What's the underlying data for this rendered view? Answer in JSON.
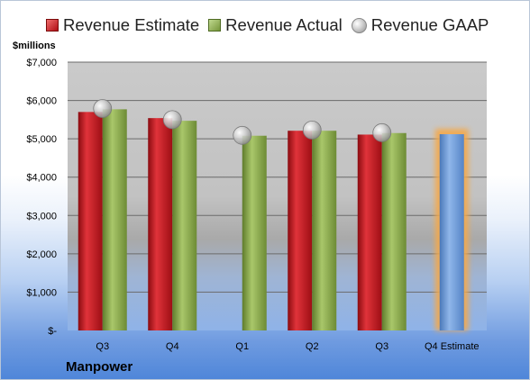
{
  "legend": {
    "estimate_label": "Revenue Estimate",
    "actual_label": "Revenue Actual",
    "gaap_label": "Revenue GAAP"
  },
  "unit_label": "$millions",
  "company": "Manpower",
  "colors": {
    "estimate": "#c0141b",
    "actual": "#8fae4e",
    "gaap": "#b5b5b5",
    "forecast": "#6a9bd8",
    "forecast_glow": "#f5a94a"
  },
  "chart_data": {
    "type": "bar",
    "categories": [
      "Q3",
      "Q4",
      "Q1",
      "Q2",
      "Q3",
      "Q4 Estimate"
    ],
    "series": [
      {
        "name": "Revenue Estimate",
        "values": [
          5700,
          5540,
          null,
          5210,
          5110,
          null
        ]
      },
      {
        "name": "Revenue Actual",
        "values": [
          5770,
          5470,
          5080,
          5210,
          5150,
          5120
        ]
      },
      {
        "name": "Revenue GAAP",
        "values": [
          5790,
          5500,
          5090,
          5230,
          5160,
          null
        ]
      }
    ],
    "highlighted_category": "Q4 Estimate",
    "ylim": [
      0,
      7000
    ],
    "yticks": [
      0,
      1000,
      2000,
      3000,
      4000,
      5000,
      6000,
      7000
    ],
    "ytick_labels": [
      "$-",
      "$1,000",
      "$2,000",
      "$3,000",
      "$4,000",
      "$5,000",
      "$6,000",
      "$7,000"
    ],
    "xlabel": "",
    "ylabel": "$millions",
    "grid": true,
    "legend_position": "top"
  }
}
